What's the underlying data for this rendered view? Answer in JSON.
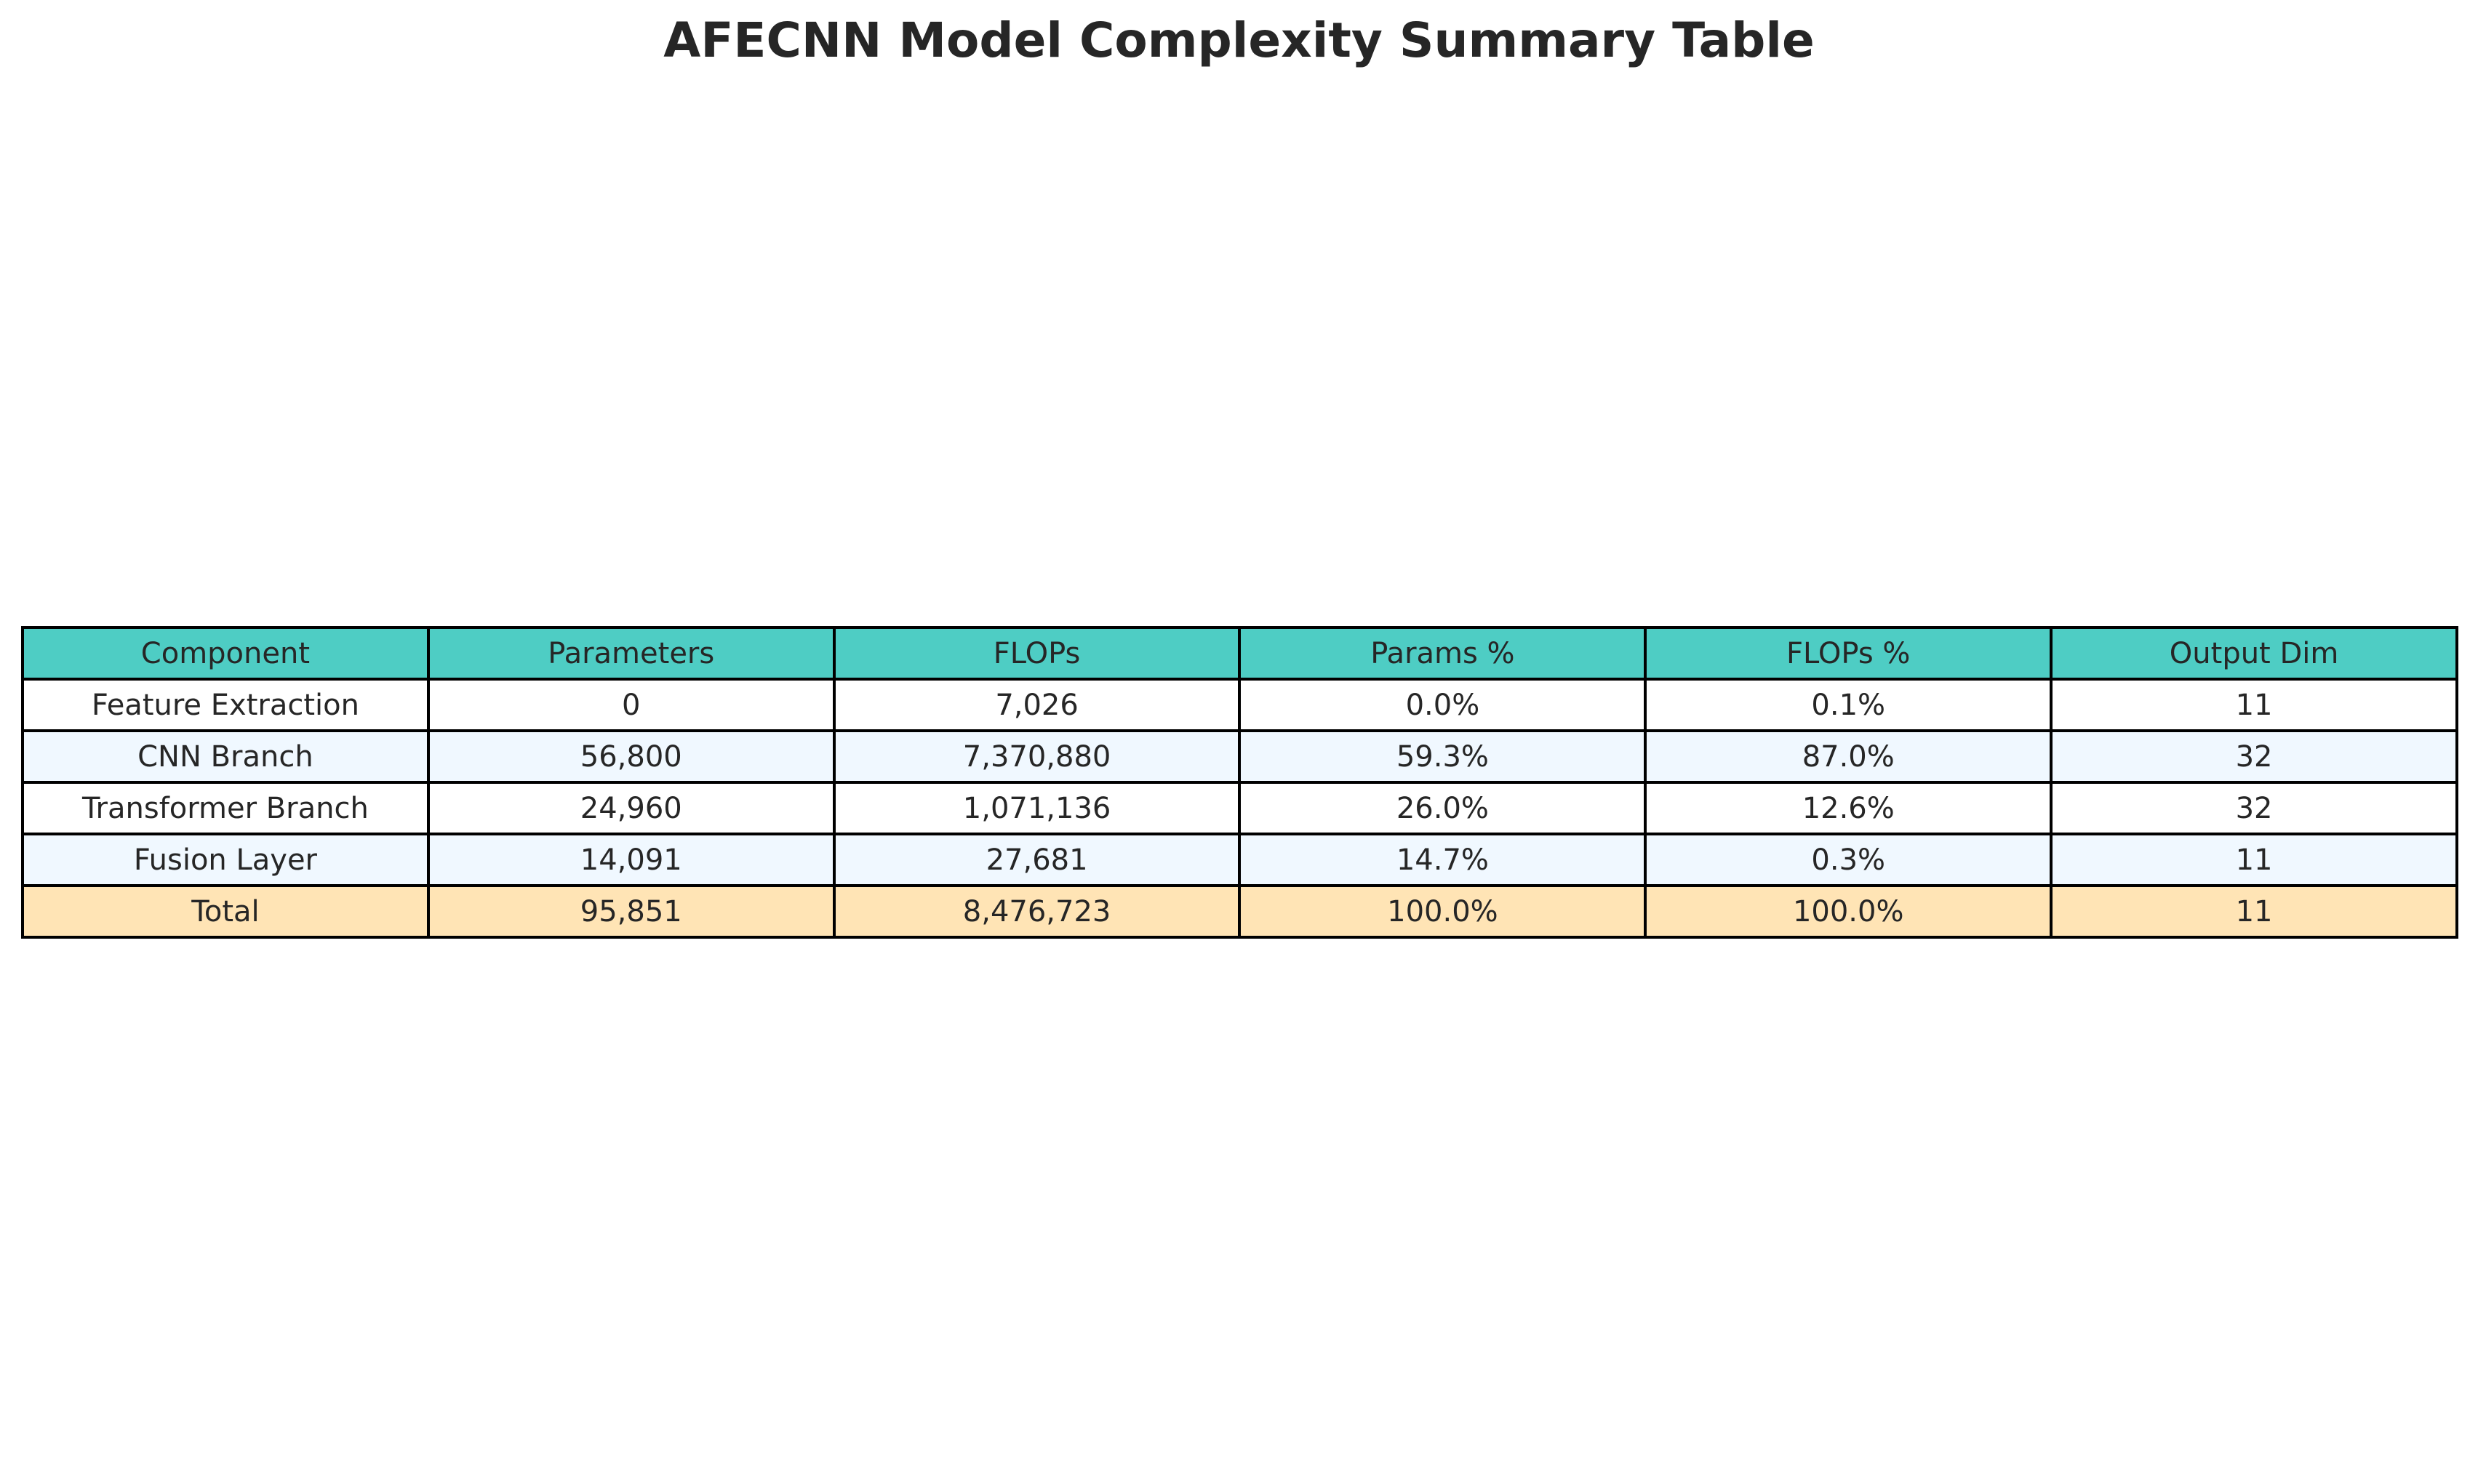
{
  "chart_data": {
    "type": "table",
    "title": "AFECNN Model Complexity Summary Table",
    "columns": [
      "Component",
      "Parameters",
      "FLOPs",
      "Params %",
      "FLOPs %",
      "Output Dim"
    ],
    "rows": [
      [
        "Feature Extraction",
        "0",
        "7,026",
        "0.0%",
        "0.1%",
        "11"
      ],
      [
        "CNN Branch",
        "56,800",
        "7,370,880",
        "59.3%",
        "87.0%",
        "32"
      ],
      [
        "Transformer Branch",
        "24,960",
        "1,071,136",
        "26.0%",
        "12.6%",
        "32"
      ],
      [
        "Fusion Layer",
        "14,091",
        "27,681",
        "14.7%",
        "0.3%",
        "11"
      ],
      [
        "Total",
        "95,851",
        "8,476,723",
        "100.0%",
        "100.0%",
        "11"
      ]
    ],
    "colors": {
      "header": "#4ecdc4",
      "row_white": "#ffffff",
      "row_alt": "#f0f8ff",
      "total": "#ffe4b5",
      "border": "#000000"
    }
  }
}
